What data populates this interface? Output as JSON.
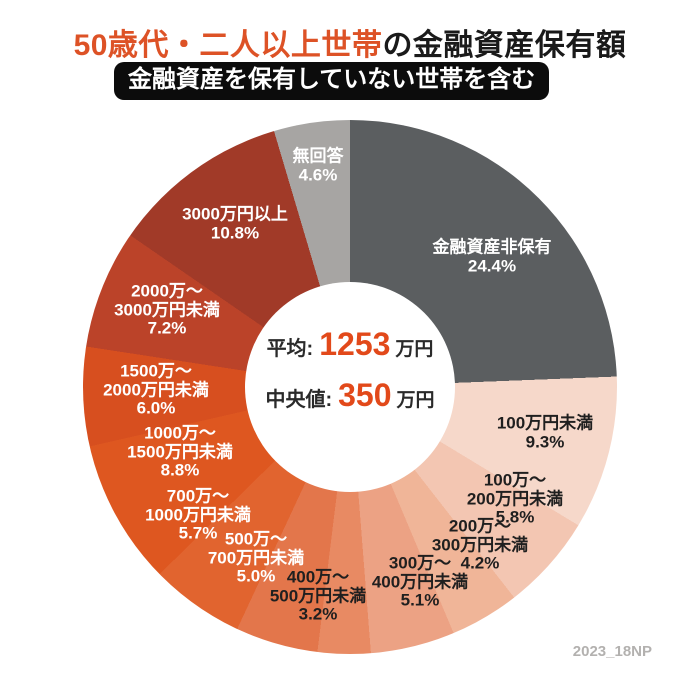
{
  "header": {
    "title_highlight": "50歳代・二人以上世帯",
    "title_rest": "の金融資産保有額",
    "badge": "金融資産を保有していない世帯を含む"
  },
  "center": {
    "rows": [
      {
        "label": "平均:",
        "value": "1253",
        "unit": "万円"
      },
      {
        "label": "中央値:",
        "value": "350",
        "unit": "万円"
      }
    ]
  },
  "footnote": "2023_18NP",
  "colors": {
    "title_highlight": "#dd5226",
    "title_rest": "#1a1a1a",
    "stat_number": "#e2491a",
    "badge_bg": "#0c0c0c",
    "badge_text": "#ffffff",
    "footnote": "#b3b1af",
    "background": "#ffffff"
  },
  "chart_data": {
    "type": "pie",
    "subtype": "donut",
    "title": "50歳代・二人以上世帯の金融資産保有額（金融資産を保有していない世帯を含む）",
    "start_angle_deg": 0,
    "direction": "clockwise",
    "unit": "%",
    "center_stats": {
      "average_label": "平均",
      "average_value_万円": 1253,
      "median_label": "中央値",
      "median_value_万円": 350
    },
    "segments": [
      {
        "name": "金融資産非保有",
        "value": 24.4,
        "pct_label": "24.4%",
        "label_lines": [
          "金融資産非保有"
        ],
        "color": "#5b5e60",
        "text_color": "#ffffff"
      },
      {
        "name": "100万円未満",
        "value": 9.3,
        "pct_label": "9.3%",
        "label_lines": [
          "100万円未満"
        ],
        "color": "#f6d8ca",
        "text_color": "#1f1f1f"
      },
      {
        "name": "100万〜200万円未満",
        "value": 5.8,
        "pct_label": "5.8%",
        "label_lines": [
          "100万〜",
          "200万円未満"
        ],
        "color": "#f3c6b2",
        "text_color": "#1f1f1f"
      },
      {
        "name": "200万〜300万円未満",
        "value": 4.2,
        "pct_label": "4.2%",
        "label_lines": [
          "200万〜",
          "300万円未満"
        ],
        "color": "#f0b598",
        "text_color": "#1f1f1f"
      },
      {
        "name": "300万〜400万円未満",
        "value": 5.1,
        "pct_label": "5.1%",
        "label_lines": [
          "300万〜",
          "400万円未満"
        ],
        "color": "#eca284",
        "text_color": "#1f1f1f"
      },
      {
        "name": "400万〜500万円未満",
        "value": 3.2,
        "pct_label": "3.2%",
        "label_lines": [
          "400万〜",
          "500万円未満"
        ],
        "color": "#e88a63",
        "text_color": "#1f1f1f"
      },
      {
        "name": "500万〜700万円未満",
        "value": 5.0,
        "pct_label": "5.0%",
        "label_lines": [
          "500万〜",
          "700万円未満"
        ],
        "color": "#e3764b",
        "text_color": "#ffffff"
      },
      {
        "name": "700万〜1000万円未満",
        "value": 5.7,
        "pct_label": "5.7%",
        "label_lines": [
          "700万〜",
          "1000万円未満"
        ],
        "color": "#e1642f",
        "text_color": "#ffffff"
      },
      {
        "name": "1000万〜1500万円未満",
        "value": 8.8,
        "pct_label": "8.8%",
        "label_lines": [
          "1000万〜",
          "1500万円未満"
        ],
        "color": "#de5720",
        "text_color": "#ffffff"
      },
      {
        "name": "1500万〜2000万円未満",
        "value": 6.0,
        "pct_label": "6.0%",
        "label_lines": [
          "1500万〜",
          "2000万円未満"
        ],
        "color": "#d74f1f",
        "text_color": "#ffffff"
      },
      {
        "name": "2000万〜3000万円未満",
        "value": 7.2,
        "pct_label": "7.2%",
        "label_lines": [
          "2000万〜",
          "3000万円未満"
        ],
        "color": "#bb4329",
        "text_color": "#ffffff"
      },
      {
        "name": "3000万円以上",
        "value": 10.8,
        "pct_label": "10.8%",
        "label_lines": [
          "3000万円以上"
        ],
        "color": "#a13a28",
        "text_color": "#ffffff"
      },
      {
        "name": "無回答",
        "value": 4.6,
        "pct_label": "4.6%",
        "label_lines": [
          "無回答"
        ],
        "color": "#a7a5a3",
        "text_color": "#ffffff"
      }
    ]
  }
}
